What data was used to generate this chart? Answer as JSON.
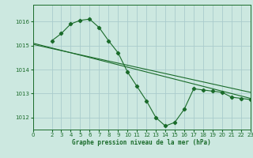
{
  "bg_color": "#cce8e0",
  "grid_color": "#aacccc",
  "line_color": "#1a6b2a",
  "xlabel": "Graphe pression niveau de la mer (hPa)",
  "ylim": [
    1011.5,
    1016.7
  ],
  "xlim": [
    0,
    23
  ],
  "yticks": [
    1012,
    1013,
    1014,
    1015,
    1016
  ],
  "xticks": [
    0,
    2,
    3,
    4,
    5,
    6,
    7,
    8,
    9,
    10,
    11,
    12,
    13,
    14,
    15,
    16,
    17,
    18,
    19,
    20,
    21,
    22,
    23
  ],
  "curve1_x": [
    2,
    3,
    4,
    5,
    6,
    7,
    8,
    9,
    10,
    11,
    12,
    13,
    14,
    15,
    16,
    17,
    18,
    19,
    20,
    21,
    22,
    23
  ],
  "curve1_y": [
    1015.2,
    1015.5,
    1015.9,
    1016.05,
    1016.1,
    1015.75,
    1015.2,
    1014.7,
    1013.9,
    1013.3,
    1012.7,
    1012.0,
    1011.65,
    1011.8,
    1012.35,
    1013.2,
    1013.15,
    1013.1,
    1013.05,
    1012.85,
    1012.8,
    1012.75
  ],
  "trend1_x": [
    0,
    23
  ],
  "trend1_y": [
    1015.1,
    1012.8
  ],
  "trend2_x": [
    0,
    23
  ],
  "trend2_y": [
    1015.05,
    1013.05
  ],
  "marker": "D",
  "markersize": 2.2,
  "tick_fontsize": 5.0,
  "xlabel_fontsize": 5.5
}
